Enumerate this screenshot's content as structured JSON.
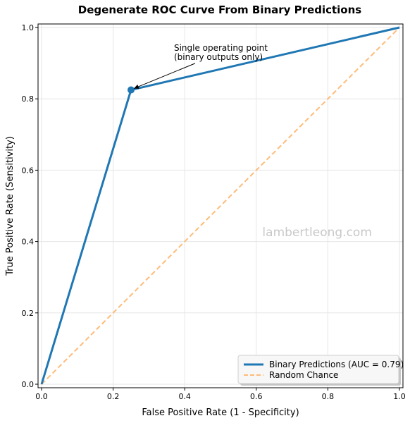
{
  "chart_data": {
    "type": "line",
    "title": "Degenerate ROC Curve From Binary Predictions",
    "xlabel": "False Positive Rate (1 - Specificity)",
    "ylabel": "True Positive Rate (Sensitivity)",
    "xlim": [
      0,
      1
    ],
    "ylim": [
      0,
      1
    ],
    "xticks": [
      "0.0",
      "0.2",
      "0.4",
      "0.6",
      "0.8",
      "1.0"
    ],
    "yticks": [
      "0.0",
      "0.2",
      "0.4",
      "0.6",
      "0.8",
      "1.0"
    ],
    "grid": true,
    "legend_position": "bottom-right",
    "series": [
      {
        "name": "Binary Predictions (AUC = 0.79)",
        "color": "#1f77b4",
        "style": "solid",
        "x": [
          0.0,
          0.25,
          1.0
        ],
        "y": [
          0.0,
          0.825,
          1.0
        ]
      },
      {
        "name": "Random Chance",
        "color": "#ffbb78",
        "style": "dashed",
        "x": [
          0.0,
          1.0
        ],
        "y": [
          0.0,
          1.0
        ]
      }
    ],
    "marker": {
      "x": 0.25,
      "y": 0.825,
      "color": "#1f77b4"
    },
    "annotation": {
      "lines": [
        "Single operating point",
        "(binary outputs only)"
      ],
      "point_x": 0.25,
      "point_y": 0.825,
      "text_x": 0.37,
      "text_y": 0.935
    },
    "watermark": "lambertleong.com"
  }
}
